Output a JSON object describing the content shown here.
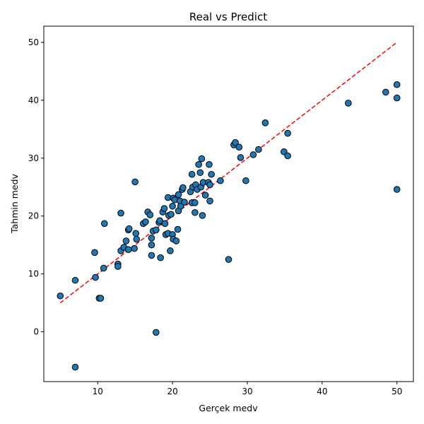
{
  "chart_data": {
    "type": "scatter",
    "title": "Real vs Predict",
    "xlabel": "Gerçek medv",
    "ylabel": "Tahmin medv",
    "xlim": [
      2.8,
      52.2
    ],
    "ylim": [
      -8.6,
      52.8
    ],
    "xticks": [
      10,
      20,
      30,
      40,
      50
    ],
    "yticks": [
      0,
      10,
      20,
      30,
      40,
      50
    ],
    "tick_labels_x": [
      "10",
      "20",
      "30",
      "40",
      "50"
    ],
    "tick_labels_y": [
      "0",
      "10",
      "20",
      "30",
      "40",
      "50"
    ],
    "grid": false,
    "legend": "none",
    "reference_line": {
      "x": [
        5,
        50
      ],
      "y": [
        5,
        50
      ],
      "style": "dashed",
      "color": "#ff0000"
    },
    "colors": {
      "point_fill": "#1f77b4",
      "point_edge": "#000000",
      "reference": "#ff0000"
    },
    "points": [
      [
        5.0,
        6.2
      ],
      [
        7.0,
        -6.1
      ],
      [
        7.0,
        8.9
      ],
      [
        9.6,
        13.7
      ],
      [
        9.7,
        9.4
      ],
      [
        10.2,
        5.8
      ],
      [
        10.4,
        5.8
      ],
      [
        10.8,
        11.0
      ],
      [
        10.9,
        18.7
      ],
      [
        12.7,
        11.7
      ],
      [
        12.7,
        11.3
      ],
      [
        13.1,
        20.5
      ],
      [
        13.1,
        14.0
      ],
      [
        13.5,
        14.6
      ],
      [
        13.8,
        15.7
      ],
      [
        14.1,
        17.6
      ],
      [
        14.2,
        17.8
      ],
      [
        14.1,
        14.2
      ],
      [
        14.9,
        14.4
      ],
      [
        15.0,
        25.9
      ],
      [
        15.1,
        17.0
      ],
      [
        15.2,
        16.0
      ],
      [
        16.1,
        18.7
      ],
      [
        16.4,
        19.0
      ],
      [
        16.7,
        20.7
      ],
      [
        17.0,
        20.2
      ],
      [
        17.2,
        15.0
      ],
      [
        17.2,
        16.2
      ],
      [
        17.2,
        13.2
      ],
      [
        17.4,
        17.4
      ],
      [
        17.8,
        17.6
      ],
      [
        17.8,
        -0.1
      ],
      [
        18.2,
        18.9
      ],
      [
        18.3,
        19.2
      ],
      [
        18.4,
        12.8
      ],
      [
        18.7,
        20.7
      ],
      [
        18.9,
        21.3
      ],
      [
        19.0,
        18.7
      ],
      [
        19.1,
        16.8
      ],
      [
        19.4,
        17.0
      ],
      [
        19.4,
        23.2
      ],
      [
        19.5,
        20.1
      ],
      [
        19.7,
        14.0
      ],
      [
        19.8,
        20.3
      ],
      [
        20.0,
        16.8
      ],
      [
        20.0,
        21.7
      ],
      [
        20.1,
        16.0
      ],
      [
        20.1,
        23.1
      ],
      [
        20.3,
        22.8
      ],
      [
        20.5,
        15.7
      ],
      [
        20.7,
        17.7
      ],
      [
        20.8,
        23.7
      ],
      [
        20.8,
        20.9
      ],
      [
        21.0,
        22.6
      ],
      [
        21.1,
        21.7
      ],
      [
        21.3,
        24.6
      ],
      [
        21.4,
        24.9
      ],
      [
        21.6,
        22.4
      ],
      [
        22.4,
        24.2
      ],
      [
        22.6,
        27.2
      ],
      [
        22.6,
        22.3
      ],
      [
        22.7,
        25.0
      ],
      [
        23.0,
        20.6
      ],
      [
        23.0,
        22.3
      ],
      [
        23.1,
        25.4
      ],
      [
        23.3,
        24.6
      ],
      [
        23.5,
        28.9
      ],
      [
        23.7,
        27.5
      ],
      [
        23.8,
        25.0
      ],
      [
        23.9,
        29.9
      ],
      [
        24.0,
        20.1
      ],
      [
        24.1,
        25.8
      ],
      [
        24.4,
        23.6
      ],
      [
        24.8,
        25.8
      ],
      [
        24.9,
        28.9
      ],
      [
        25.0,
        22.6
      ],
      [
        25.0,
        25.4
      ],
      [
        25.2,
        27.2
      ],
      [
        26.4,
        26.1
      ],
      [
        27.5,
        12.5
      ],
      [
        28.2,
        32.3
      ],
      [
        28.4,
        32.7
      ],
      [
        28.9,
        31.9
      ],
      [
        29.1,
        30.1
      ],
      [
        29.8,
        26.1
      ],
      [
        30.8,
        30.6
      ],
      [
        31.5,
        31.5
      ],
      [
        32.4,
        36.1
      ],
      [
        34.9,
        31.1
      ],
      [
        35.4,
        30.4
      ],
      [
        35.4,
        34.3
      ],
      [
        43.5,
        39.5
      ],
      [
        48.5,
        41.4
      ],
      [
        50.0,
        42.7
      ],
      [
        50.0,
        40.4
      ],
      [
        50.0,
        24.6
      ]
    ]
  }
}
